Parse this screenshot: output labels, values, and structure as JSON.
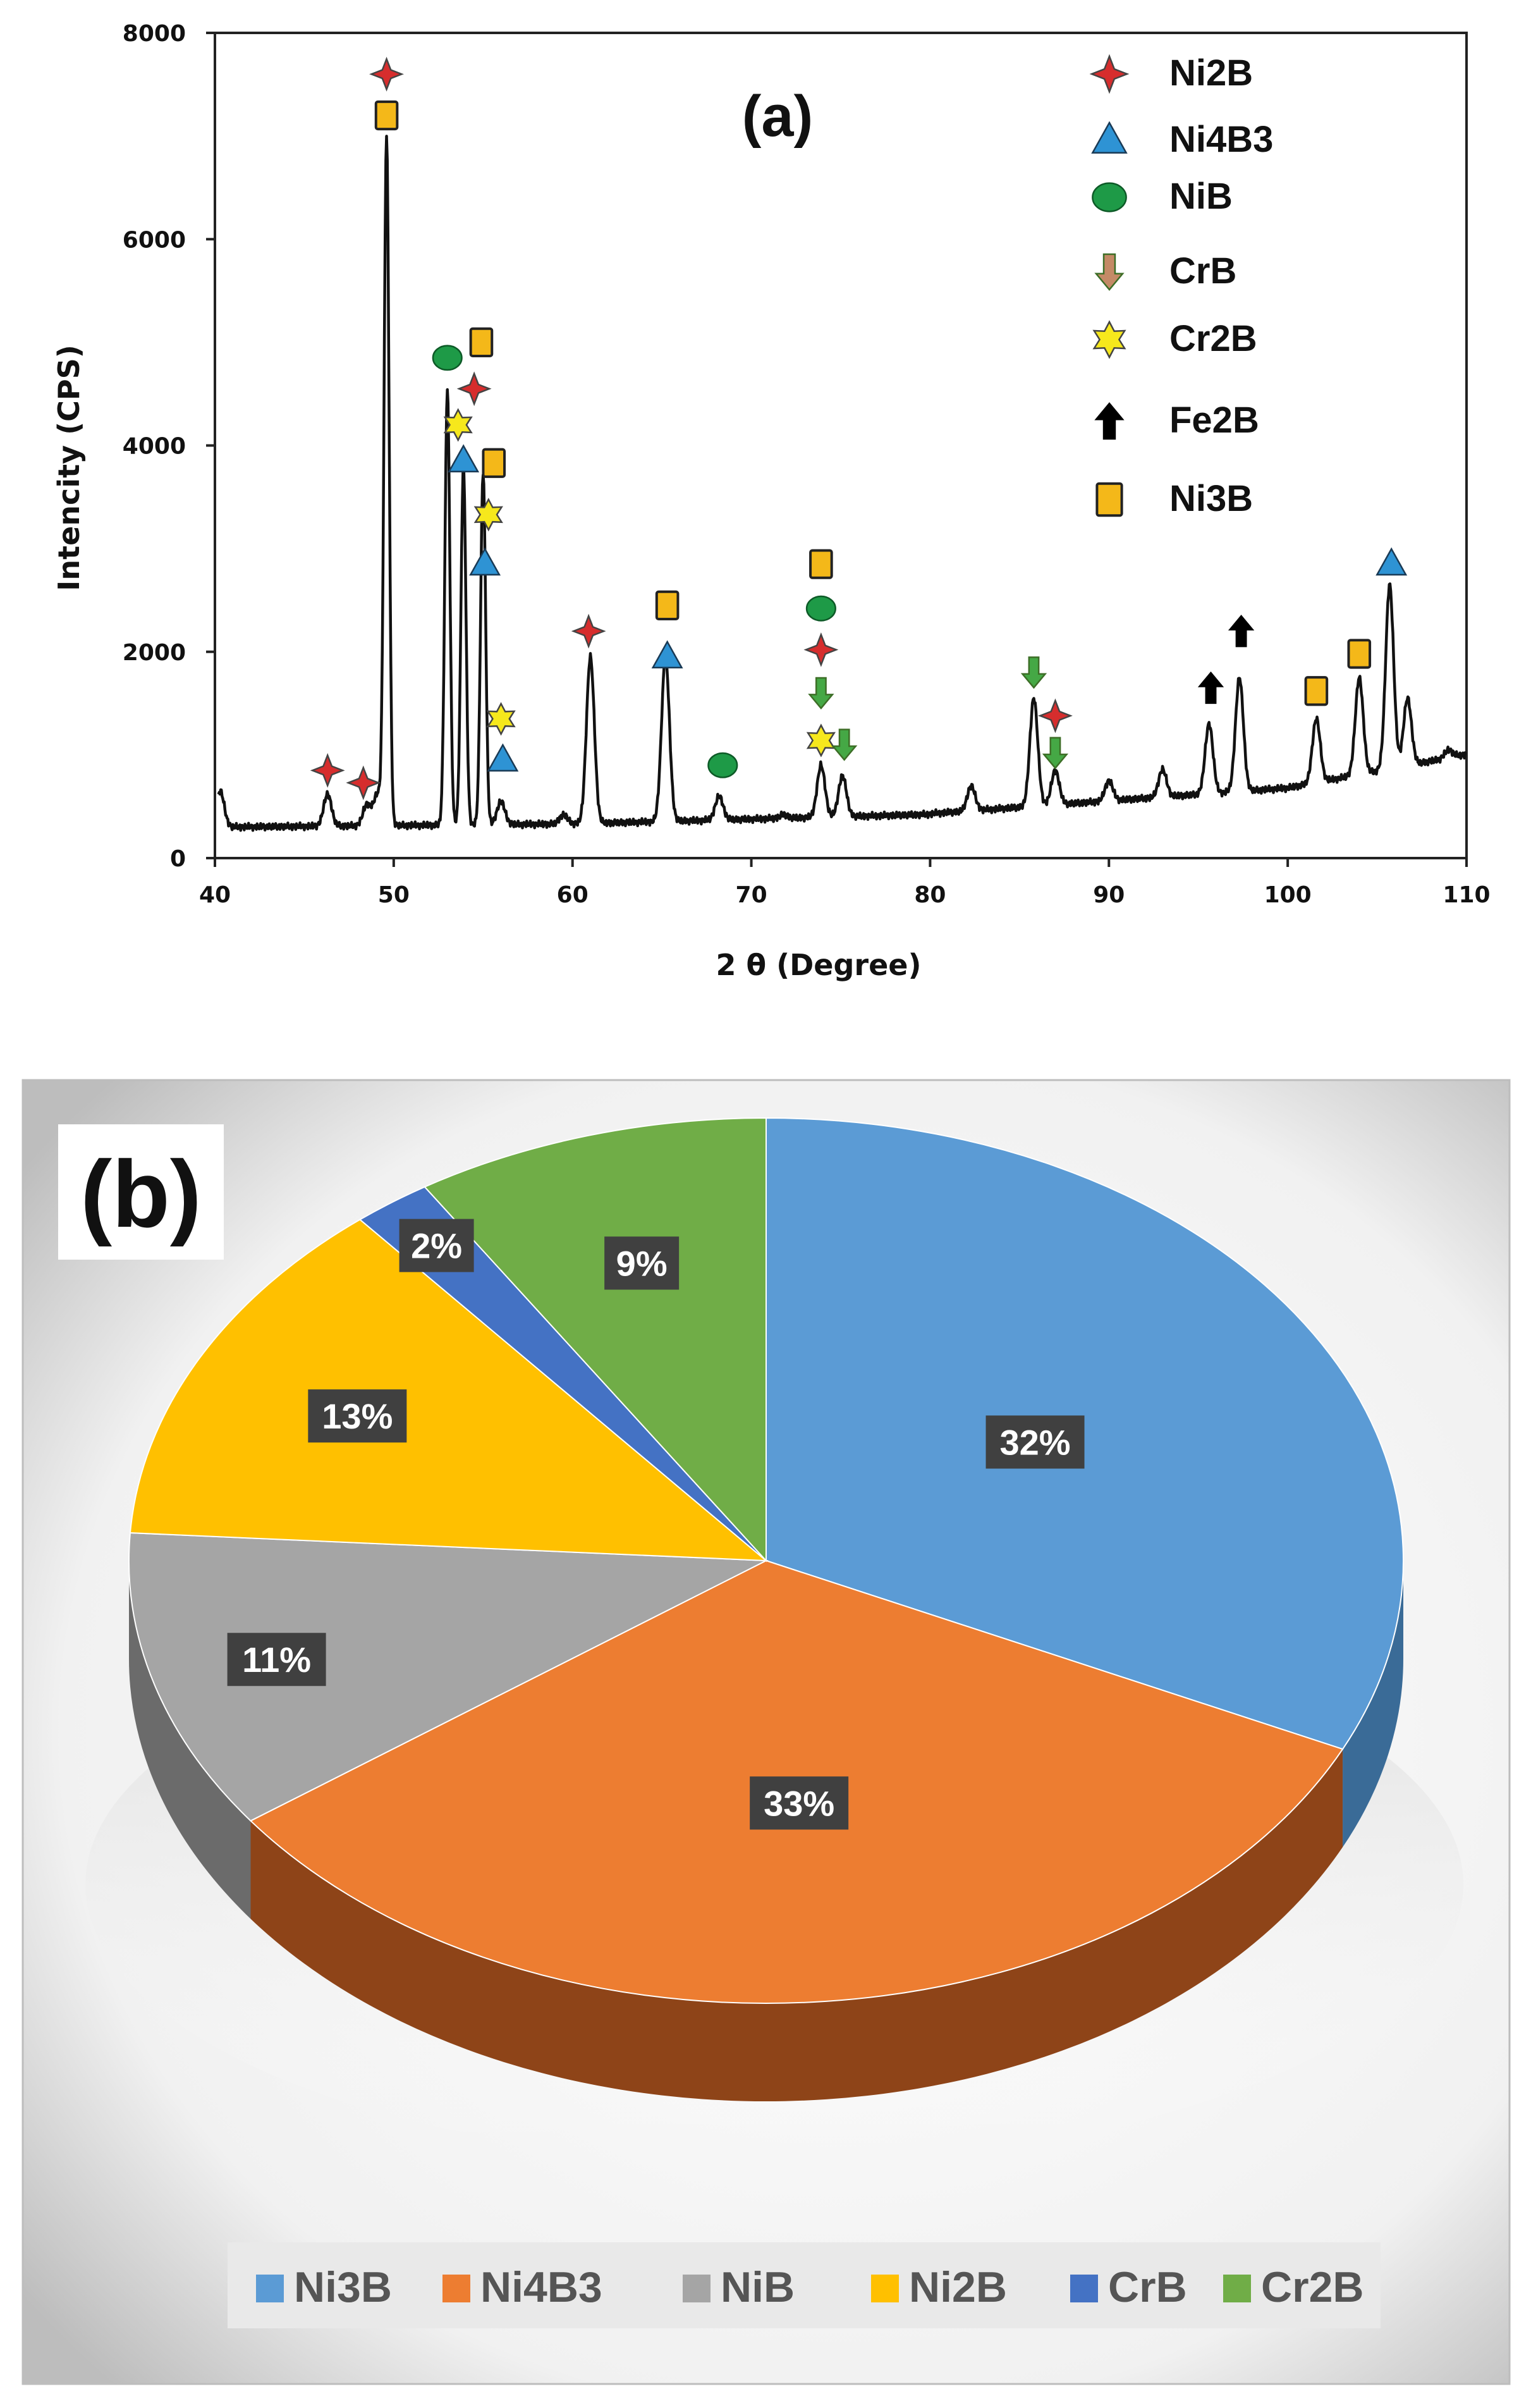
{
  "chart_data": [
    {
      "type": "line",
      "title": "(a)",
      "xlabel": "2 θ (Degree)",
      "ylabel": "Intencity (CPS)",
      "xlim": [
        40,
        110
      ],
      "ylim": [
        0,
        8000
      ],
      "x_ticks": [
        "40",
        "50",
        "60",
        "70",
        "80",
        "90",
        "100",
        "110"
      ],
      "y_ticks": [
        "0",
        "2000",
        "4000",
        "6000",
        "8000"
      ],
      "peaks": [
        {
          "x": 40.3,
          "y": 650
        },
        {
          "x": 46.3,
          "y": 620
        },
        {
          "x": 48.5,
          "y": 520
        },
        {
          "x": 49.1,
          "y": 620
        },
        {
          "x": 49.6,
          "y": 7000
        },
        {
          "x": 53.0,
          "y": 4550
        },
        {
          "x": 53.9,
          "y": 3800
        },
        {
          "x": 55.0,
          "y": 3750
        },
        {
          "x": 56.0,
          "y": 550
        },
        {
          "x": 59.5,
          "y": 420
        },
        {
          "x": 61.0,
          "y": 1950
        },
        {
          "x": 65.2,
          "y": 1950
        },
        {
          "x": 68.2,
          "y": 600
        },
        {
          "x": 71.8,
          "y": 420
        },
        {
          "x": 73.9,
          "y": 900
        },
        {
          "x": 75.1,
          "y": 800
        },
        {
          "x": 82.3,
          "y": 700
        },
        {
          "x": 85.8,
          "y": 1550
        },
        {
          "x": 87.0,
          "y": 850
        },
        {
          "x": 90.0,
          "y": 750
        },
        {
          "x": 93.0,
          "y": 860
        },
        {
          "x": 95.6,
          "y": 1300
        },
        {
          "x": 97.3,
          "y": 1750
        },
        {
          "x": 101.6,
          "y": 1350
        },
        {
          "x": 104.0,
          "y": 1750
        },
        {
          "x": 105.7,
          "y": 2650
        },
        {
          "x": 106.7,
          "y": 1550
        },
        {
          "x": 109.0,
          "y": 1050
        }
      ],
      "phase_markers": [
        {
          "phase": "Ni2B",
          "x": 49.6,
          "y": 7600
        },
        {
          "phase": "Ni3B",
          "x": 49.6,
          "y": 7200
        },
        {
          "phase": "Ni2B",
          "x": 46.3,
          "y": 850
        },
        {
          "phase": "Ni2B",
          "x": 48.3,
          "y": 730
        },
        {
          "phase": "NiB",
          "x": 53.0,
          "y": 4850
        },
        {
          "phase": "Cr2B",
          "x": 53.6,
          "y": 4200
        },
        {
          "phase": "Ni4B3",
          "x": 53.9,
          "y": 3850
        },
        {
          "phase": "Ni2B",
          "x": 54.5,
          "y": 4550
        },
        {
          "phase": "Ni3B",
          "x": 54.9,
          "y": 5000
        },
        {
          "phase": "Ni3B",
          "x": 55.6,
          "y": 3830
        },
        {
          "phase": "Cr2B",
          "x": 55.3,
          "y": 3330
        },
        {
          "phase": "Ni4B3",
          "x": 55.1,
          "y": 2850
        },
        {
          "phase": "Cr2B",
          "x": 56.0,
          "y": 1350
        },
        {
          "phase": "Ni4B3",
          "x": 56.1,
          "y": 950
        },
        {
          "phase": "Ni2B",
          "x": 60.9,
          "y": 2200
        },
        {
          "phase": "Ni3B",
          "x": 65.3,
          "y": 2450
        },
        {
          "phase": "Ni4B3",
          "x": 65.3,
          "y": 1950
        },
        {
          "phase": "NiB",
          "x": 68.4,
          "y": 900
        },
        {
          "phase": "Ni3B",
          "x": 73.9,
          "y": 2850
        },
        {
          "phase": "NiB",
          "x": 73.9,
          "y": 2420
        },
        {
          "phase": "Ni2B",
          "x": 73.9,
          "y": 2020
        },
        {
          "phase": "CrB",
          "x": 73.9,
          "y": 1600
        },
        {
          "phase": "Cr2B",
          "x": 73.9,
          "y": 1140
        },
        {
          "phase": "CrB",
          "x": 75.2,
          "y": 1100
        },
        {
          "phase": "CrB",
          "x": 85.8,
          "y": 1800
        },
        {
          "phase": "Ni2B",
          "x": 87.0,
          "y": 1380
        },
        {
          "phase": "CrB",
          "x": 87.0,
          "y": 1020
        },
        {
          "phase": "Fe2B",
          "x": 95.7,
          "y": 1650
        },
        {
          "phase": "Fe2B",
          "x": 97.4,
          "y": 2200
        },
        {
          "phase": "Ni3B",
          "x": 101.6,
          "y": 1620
        },
        {
          "phase": "Ni3B",
          "x": 104.0,
          "y": 1980
        },
        {
          "phase": "Ni4B3",
          "x": 105.8,
          "y": 2850
        }
      ],
      "legend": [
        {
          "key": "Ni2B",
          "label": "Ni2B",
          "symbol": "star4",
          "color": "#d62d2d"
        },
        {
          "key": "Ni4B3",
          "label": "Ni4B3",
          "symbol": "triangle",
          "color": "#2e93d4"
        },
        {
          "key": "NiB",
          "label": "NiB",
          "symbol": "circle",
          "color": "#1e9a47"
        },
        {
          "key": "CrB",
          "label": "CrB",
          "symbol": "arrow-down",
          "color": "#c48a66"
        },
        {
          "key": "Cr2B",
          "label": "Cr2B",
          "symbol": "star6",
          "color": "#f6e81c"
        },
        {
          "key": "Fe2B",
          "label": "Fe2B",
          "symbol": "arrow-up",
          "color": "#000000"
        },
        {
          "key": "Ni3B",
          "label": "Ni3B",
          "symbol": "square",
          "color": "#f4b819"
        }
      ]
    },
    {
      "type": "pie",
      "title": "(b)",
      "slices": [
        {
          "name": "Ni3B",
          "value": 32,
          "label": "32%",
          "color": "#5b9bd5",
          "side": "#3a6b97"
        },
        {
          "name": "Ni4B3",
          "value": 33,
          "label": "33%",
          "color": "#ed7d31",
          "side": "#8e4418"
        },
        {
          "name": "NiB",
          "value": 11,
          "label": "11%",
          "color": "#a5a5a5",
          "side": "#6b6b6b"
        },
        {
          "name": "Ni2B",
          "value": 13,
          "label": "13%",
          "color": "#ffc000",
          "side": "#a37a00"
        },
        {
          "name": "CrB",
          "value": 2,
          "label": "2%",
          "color": "#4472c4",
          "side": "#2c4a80"
        },
        {
          "name": "Cr2B",
          "value": 9,
          "label": "9%",
          "color": "#70ad47",
          "side": "#46702c"
        }
      ],
      "legend": [
        "Ni3B",
        "Ni4B3",
        "NiB",
        "Ni2B",
        "CrB",
        "Cr2B"
      ]
    }
  ]
}
